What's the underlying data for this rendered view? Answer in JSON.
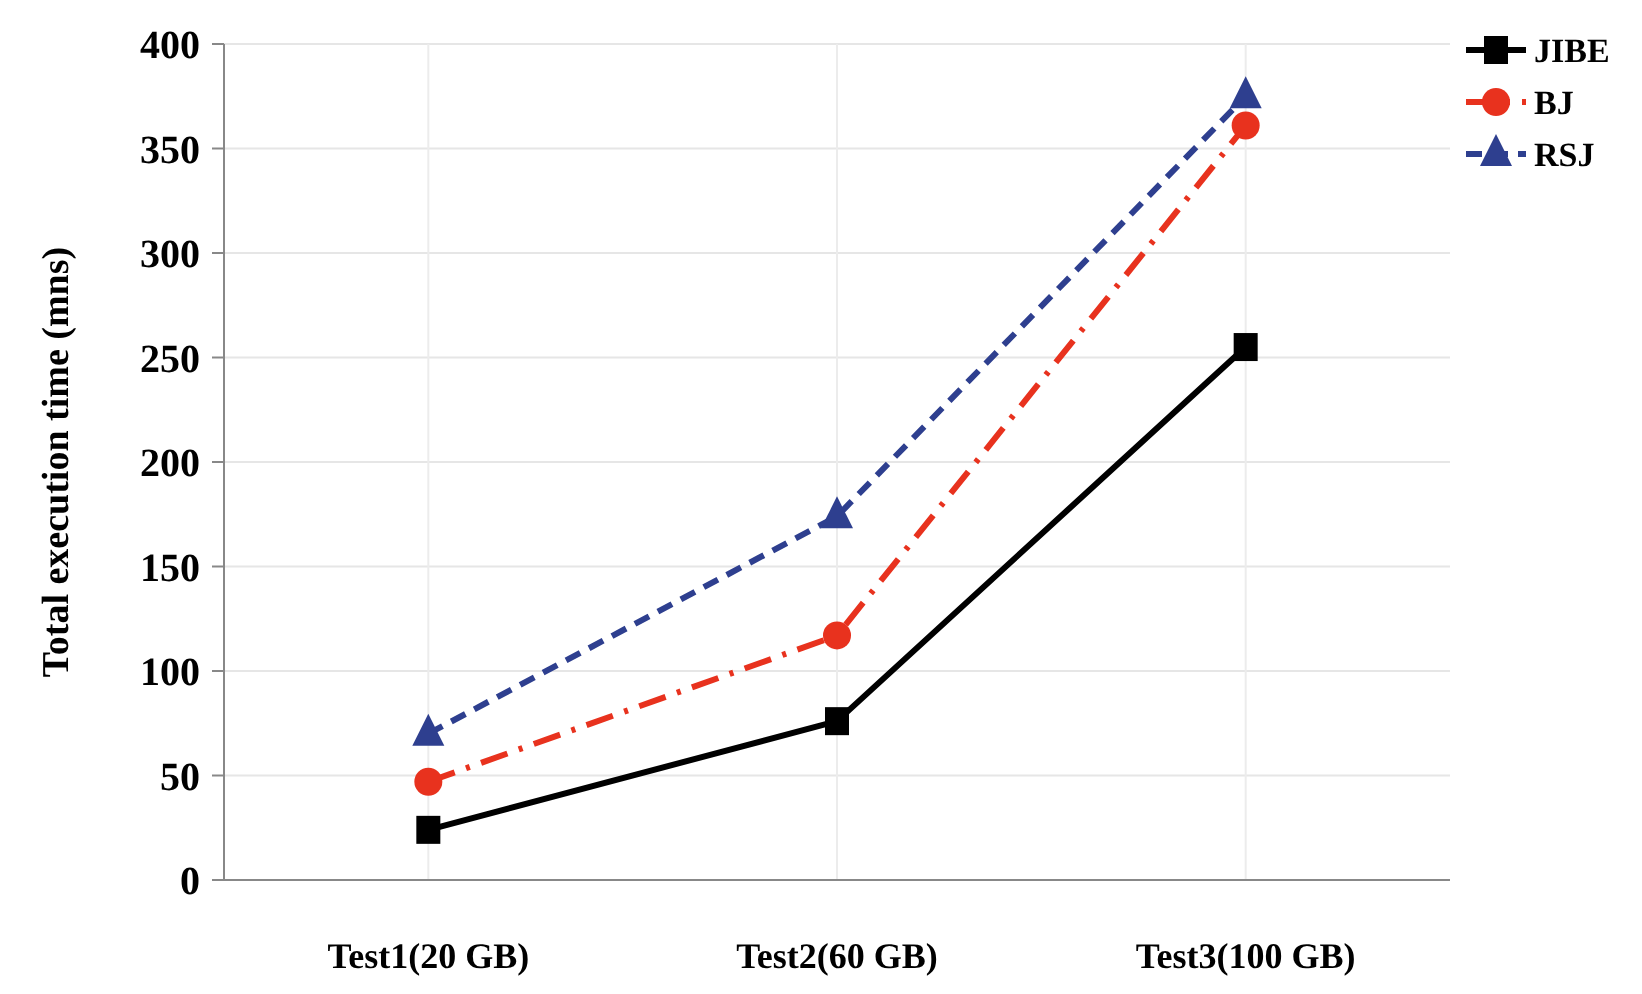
{
  "chart_data": {
    "type": "line",
    "ylabel": "Total execution time (mns)",
    "categories": [
      "Test1(20 GB)",
      "Test2(60 GB)",
      "Test3(100 GB)"
    ],
    "series": [
      {
        "name": "JIBE",
        "color": "#000000",
        "values": [
          24,
          76,
          255
        ],
        "marker": "square",
        "line_style": "solid"
      },
      {
        "name": "BJ",
        "color": "#e8321e",
        "values": [
          47,
          117,
          361
        ],
        "marker": "circle",
        "line_style": "dashdot"
      },
      {
        "name": "RSJ",
        "color": "#2e3f8f",
        "values": [
          70,
          174,
          375
        ],
        "marker": "triangle",
        "line_style": "dashed"
      }
    ],
    "ylim": [
      0,
      400
    ],
    "yticks": [
      0,
      50,
      100,
      150,
      200,
      250,
      300,
      350,
      400
    ],
    "grid": true,
    "legend": "top right"
  }
}
